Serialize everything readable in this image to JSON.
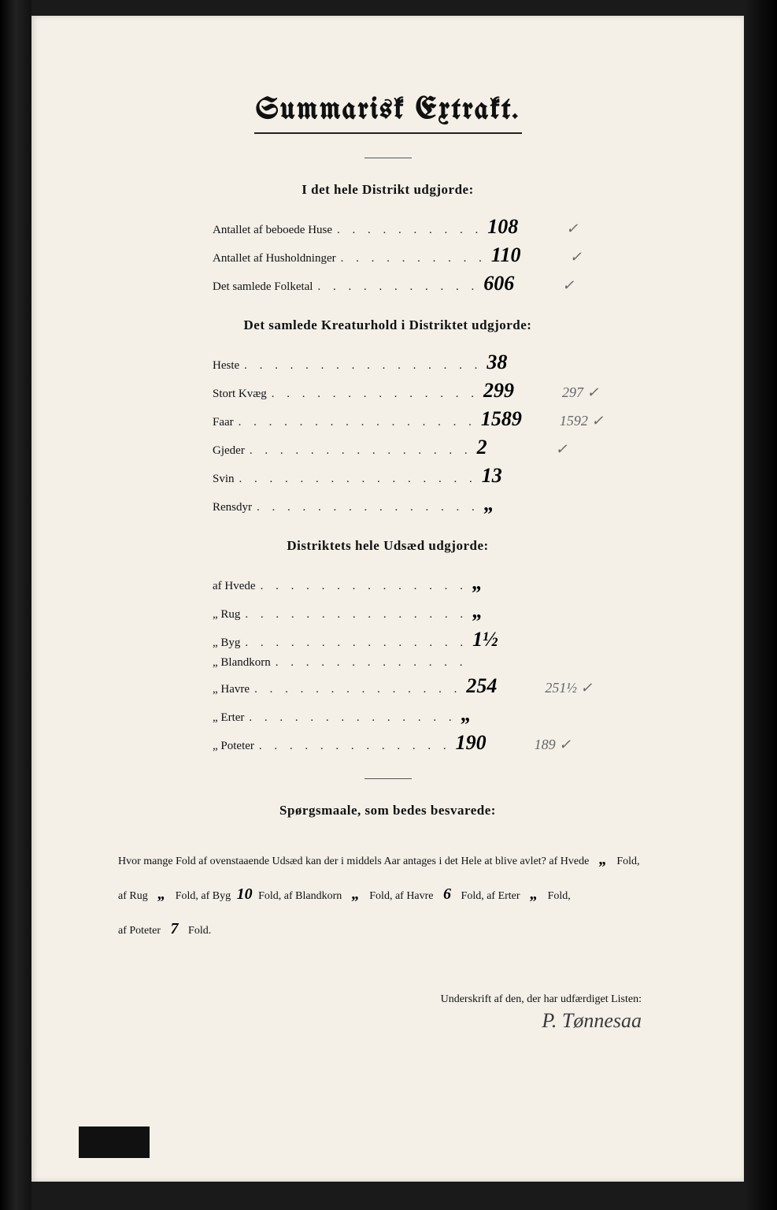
{
  "title": "Summarisk Extrakt.",
  "sections": {
    "district": {
      "heading": "I det hele Distrikt udgjorde:",
      "rows": [
        {
          "label": "Antallet af beboede Huse",
          "dots": ". . . . . . . . . .",
          "value": "108",
          "annot": "✓"
        },
        {
          "label": "Antallet af Husholdninger",
          "dots": ". . . . . . . . . .",
          "value": "110",
          "annot": "✓"
        },
        {
          "label": "Det samlede Folketal",
          "dots": ". . . . . . . . . . .",
          "value": "606",
          "annot": "✓"
        }
      ]
    },
    "livestock": {
      "heading": "Det samlede Kreaturhold i Distriktet udgjorde:",
      "rows": [
        {
          "label": "Heste",
          "dots": ". . . . . . . . . . . . . . . .",
          "value": "38",
          "annot": ""
        },
        {
          "label": "Stort Kvæg",
          "dots": ". . . . . . . . . . . . . .",
          "value": "299",
          "annot": "297 ✓"
        },
        {
          "label": "Faar",
          "dots": ". . . . . . . . . . . . . . . .",
          "value": "1589",
          "annot": "1592 ✓"
        },
        {
          "label": "Gjeder",
          "dots": ". . . . . . . . . . . . . . .",
          "value": "2",
          "annot": "✓"
        },
        {
          "label": "Svin",
          "dots": ". . . . . . . . . . . . . . . .",
          "value": "13",
          "annot": ""
        },
        {
          "label": "Rensdyr",
          "dots": ". . . . . . . . . . . . . . .",
          "value": "„",
          "annot": ""
        }
      ]
    },
    "seed": {
      "heading": "Distriktets hele Udsæd udgjorde:",
      "rows": [
        {
          "label": "af Hvede",
          "dots": ". . . . . . . . . . . . . .",
          "value": "„",
          "annot": ""
        },
        {
          "label": "„ Rug",
          "dots": ". . . . . . . . . . . . . . .",
          "value": "„",
          "annot": ""
        },
        {
          "label": "„ Byg",
          "dots": ". . . . . . . . . . . . . . .",
          "value": "1½",
          "annot": ""
        },
        {
          "label": "„ Blandkorn",
          "dots": ". . . . . . . . . . . . .",
          "value": "",
          "annot": ""
        },
        {
          "label": "„ Havre",
          "dots": ". . . . . . . . . . . . . .",
          "value": "254",
          "annot": "251½ ✓"
        },
        {
          "label": "„ Erter",
          "dots": ". . . . . . . . . . . . . .",
          "value": "„",
          "annot": ""
        },
        {
          "label": "„ Poteter",
          "dots": ". . . . . . . . . . . . .",
          "value": "190",
          "annot": "189 ✓"
        }
      ]
    }
  },
  "questions": {
    "heading": "Spørgsmaale, som bedes besvarede:",
    "text_1": "Hvor mange Fold af ovenstaaende Udsæd kan der i middels Aar antages i det Hele at blive avlet?  af Hvede",
    "hvede": "„",
    "text_2": "Fold,",
    "text_3": "af Rug",
    "rug": "„",
    "text_4": "Fold, af Byg",
    "byg": "10",
    "text_5": "Fold, af Blandkorn",
    "blandkorn": "„",
    "text_6": "Fold, af Havre",
    "havre": "6",
    "text_7": "Fold, af Erter",
    "erter": "„",
    "text_8": "Fold,",
    "text_9": "af Poteter",
    "poteter": "7",
    "text_10": "Fold."
  },
  "signature": {
    "label": "Underskrift af den, der har udfærdiget Listen:",
    "name": "P. Tønnesaa"
  }
}
